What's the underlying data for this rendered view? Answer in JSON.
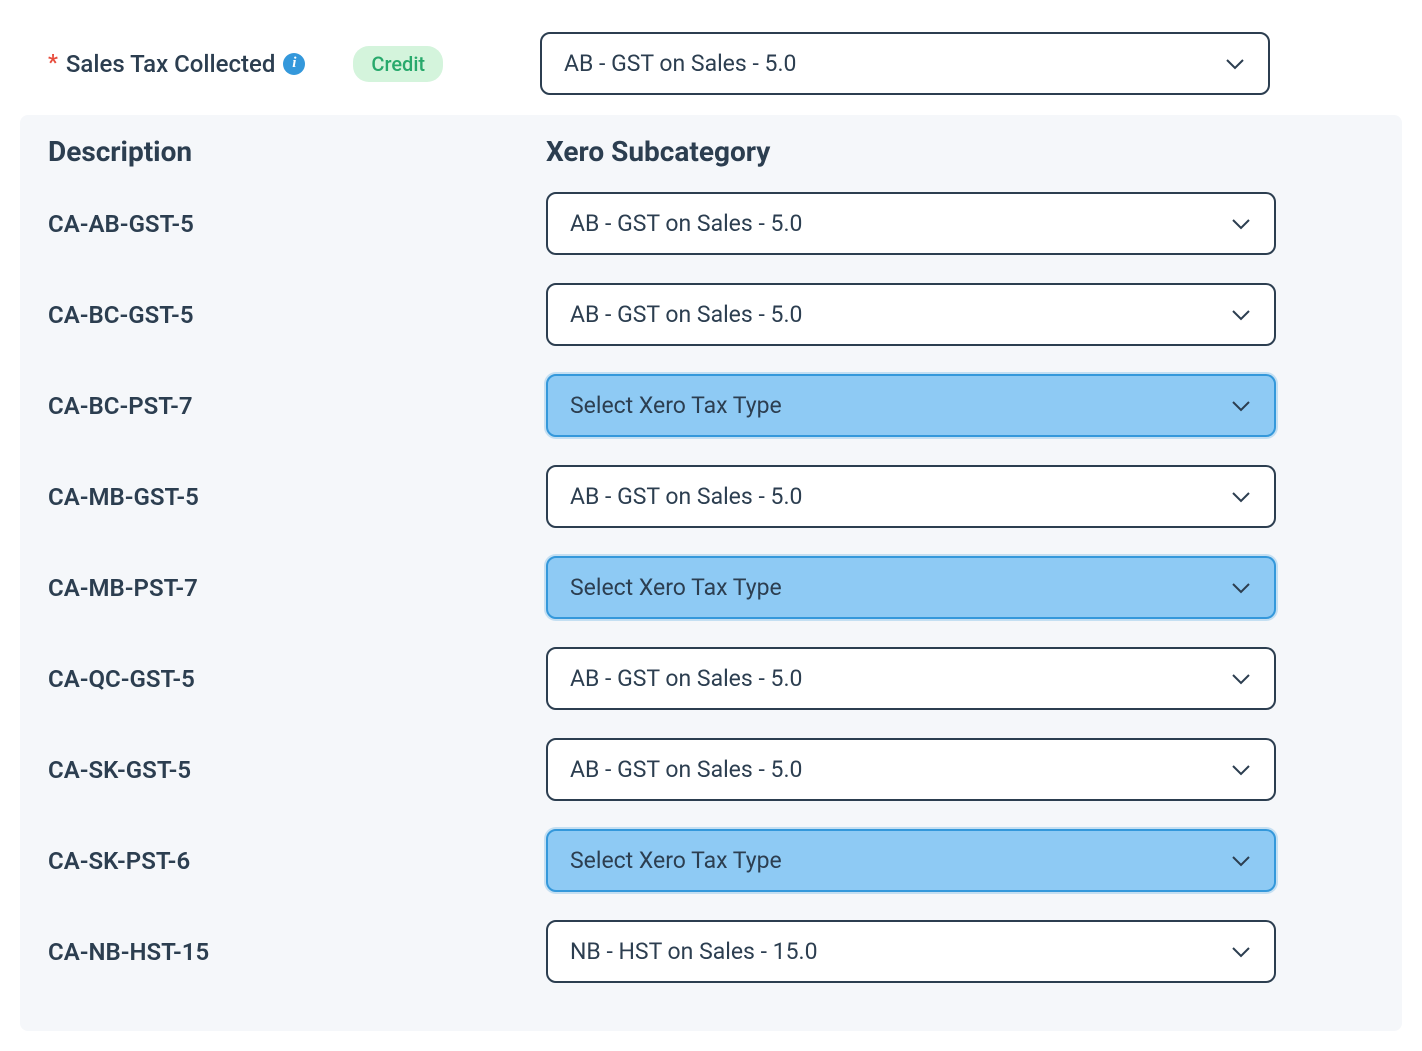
{
  "header": {
    "required_marker": "*",
    "label": "Sales Tax Collected",
    "badge": "Credit",
    "main_select_value": "AB - GST on Sales - 5.0"
  },
  "columns": {
    "description": "Description",
    "subcategory": "Xero Subcategory"
  },
  "rows": [
    {
      "desc": "CA-AB-GST-5",
      "value": "AB - GST on Sales - 5.0",
      "highlighted": false
    },
    {
      "desc": "CA-BC-GST-5",
      "value": "AB - GST on Sales - 5.0",
      "highlighted": false
    },
    {
      "desc": "CA-BC-PST-7",
      "value": "Select Xero Tax Type",
      "highlighted": true
    },
    {
      "desc": "CA-MB-GST-5",
      "value": "AB - GST on Sales - 5.0",
      "highlighted": false
    },
    {
      "desc": "CA-MB-PST-7",
      "value": "Select Xero Tax Type",
      "highlighted": true
    },
    {
      "desc": "CA-QC-GST-5",
      "value": "AB - GST on Sales - 5.0",
      "highlighted": false
    },
    {
      "desc": "CA-SK-GST-5",
      "value": "AB - GST on Sales - 5.0",
      "highlighted": false
    },
    {
      "desc": "CA-SK-PST-6",
      "value": "Select Xero Tax Type",
      "highlighted": true
    },
    {
      "desc": "CA-NB-HST-15",
      "value": "NB - HST on Sales - 15.0",
      "highlighted": false
    }
  ],
  "colors": {
    "text": "#2c3e50",
    "required": "#e74c3c",
    "info_bg": "#3498db",
    "badge_bg": "#d4f4dc",
    "badge_text": "#28a96c",
    "section_bg": "#f5f7fa",
    "highlight_bg": "#8ecaf4",
    "highlight_border": "#3498db",
    "select_border": "#2c3e50"
  }
}
